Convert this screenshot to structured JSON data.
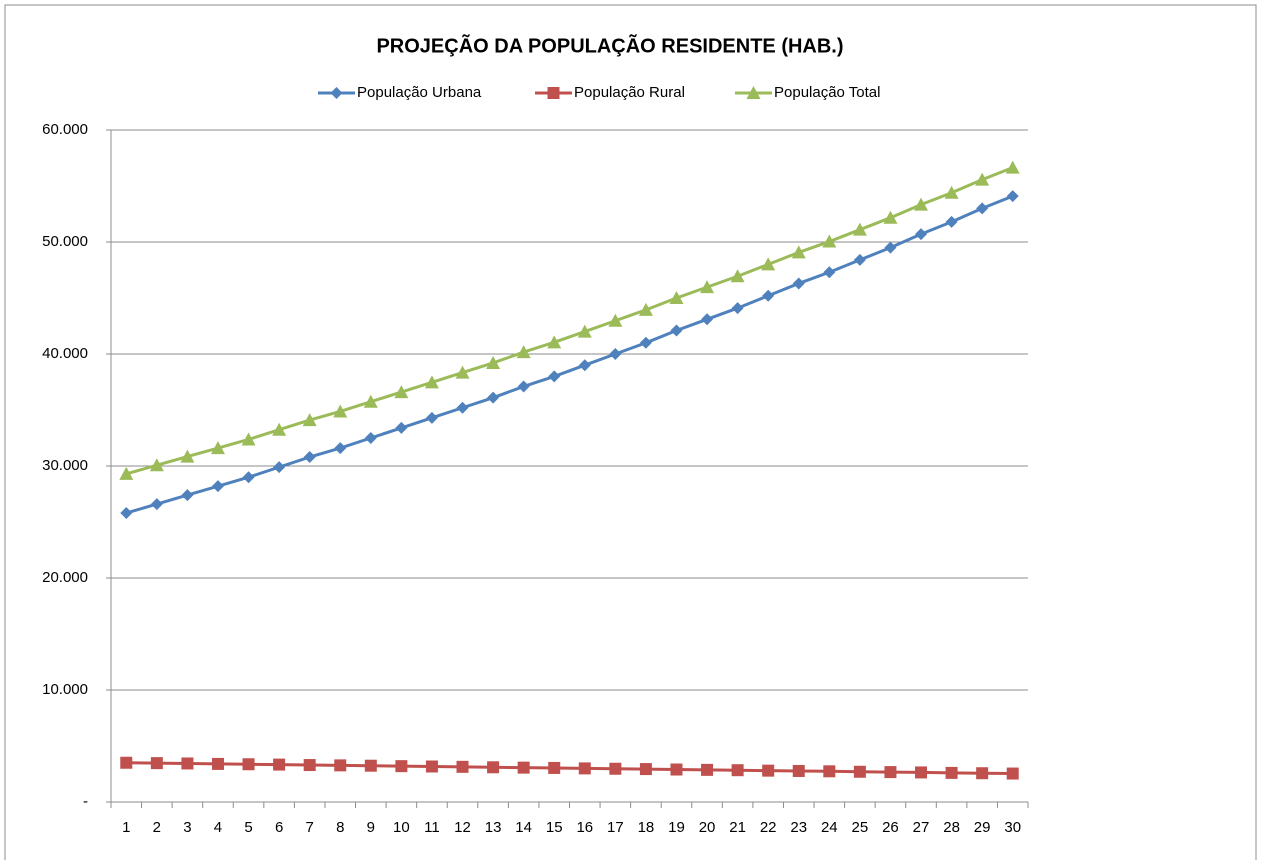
{
  "chart_data": {
    "type": "line",
    "title": "PROJEÇÃO DA POPULAÇÃO RESIDENTE (HAB.)",
    "categories": [
      1,
      2,
      3,
      4,
      5,
      6,
      7,
      8,
      9,
      10,
      11,
      12,
      13,
      14,
      15,
      16,
      17,
      18,
      19,
      20,
      21,
      22,
      23,
      24,
      25,
      26,
      27,
      28,
      29,
      30
    ],
    "series": [
      {
        "name": "População Urbana",
        "color": "#4f81bd",
        "marker": "diamond",
        "values": [
          25800,
          26600,
          27400,
          28200,
          29000,
          29900,
          30800,
          31600,
          32500,
          33400,
          34300,
          35200,
          36100,
          37100,
          38000,
          39000,
          40000,
          41000,
          42100,
          43100,
          44100,
          45200,
          46300,
          47300,
          48400,
          49500,
          50700,
          51800,
          53000,
          54100
        ]
      },
      {
        "name": "População Rural",
        "color": "#c0504d",
        "marker": "square",
        "values": [
          3500,
          3470,
          3440,
          3400,
          3370,
          3340,
          3300,
          3270,
          3240,
          3200,
          3170,
          3140,
          3100,
          3070,
          3040,
          3000,
          2970,
          2940,
          2900,
          2870,
          2840,
          2800,
          2770,
          2740,
          2700,
          2670,
          2640,
          2600,
          2570,
          2540
        ]
      },
      {
        "name": "População Total",
        "color": "#9bbb59",
        "marker": "triangle",
        "values": [
          29300,
          30070,
          30840,
          31600,
          32370,
          33240,
          34100,
          34870,
          35740,
          36600,
          37470,
          38340,
          39200,
          40170,
          41040,
          42000,
          42970,
          43940,
          45000,
          45970,
          46940,
          48000,
          49070,
          50040,
          51100,
          52170,
          53340,
          54400,
          55570,
          56640
        ]
      }
    ],
    "ylim": [
      0,
      60000
    ],
    "yticks": [
      {
        "value": 0,
        "label": "-"
      },
      {
        "value": 10000,
        "label": "10.000"
      },
      {
        "value": 20000,
        "label": "20.000"
      },
      {
        "value": 30000,
        "label": "30.000"
      },
      {
        "value": 40000,
        "label": "40.000"
      },
      {
        "value": 50000,
        "label": "50.000"
      },
      {
        "value": 60000,
        "label": "60.000"
      }
    ],
    "grid": true,
    "legend": "top"
  }
}
